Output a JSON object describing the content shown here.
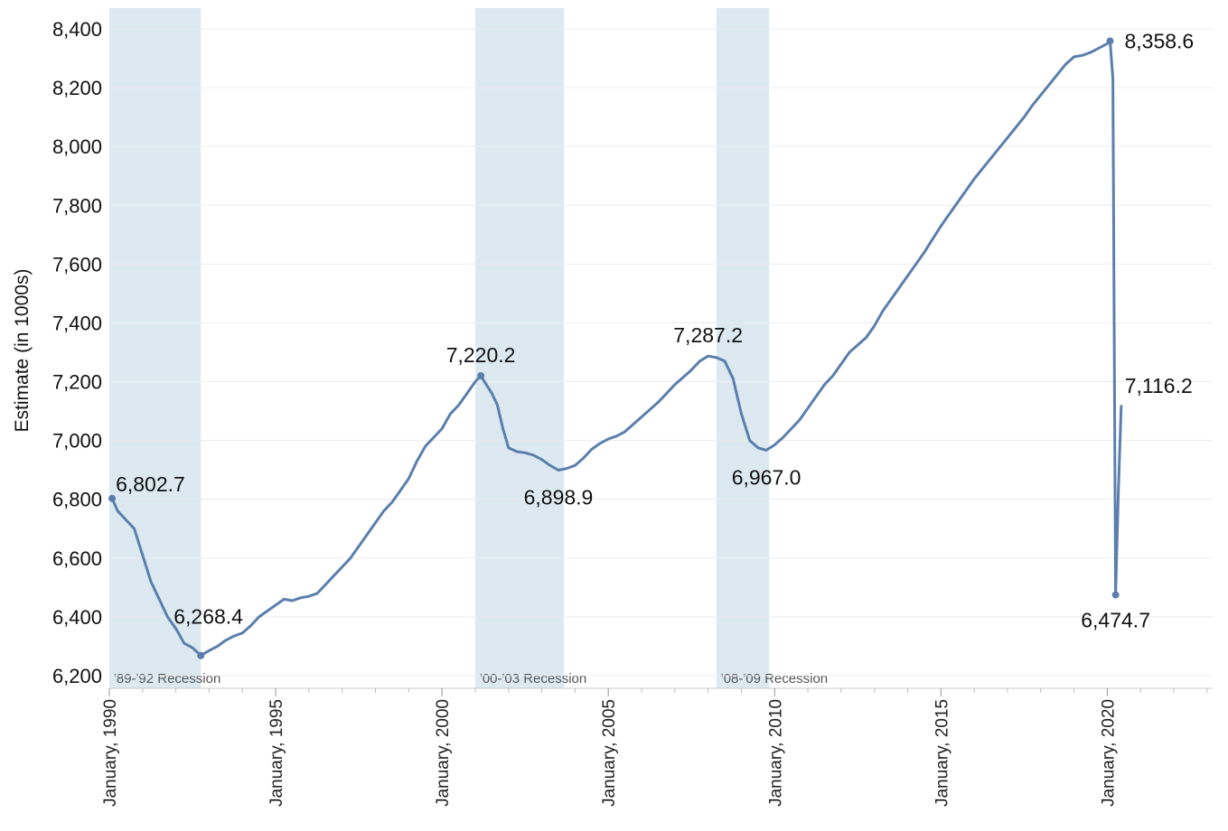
{
  "chart_data": {
    "type": "line",
    "title": "",
    "xlabel": "",
    "ylabel": "Estimate (in 1000s)",
    "ylim": [
      6200,
      8400
    ],
    "xlim": [
      "1990-01",
      "2023-03"
    ],
    "grid": "horizontal",
    "legend": "none",
    "y_ticks": [
      "6,200",
      "6,400",
      "6,600",
      "6,800",
      "7,000",
      "7,200",
      "7,400",
      "7,600",
      "7,800",
      "8,000",
      "8,200",
      "8,400"
    ],
    "y_tick_values": [
      6200,
      6400,
      6600,
      6800,
      7000,
      7200,
      7400,
      7600,
      7800,
      8000,
      8200,
      8400
    ],
    "x_ticks": [
      {
        "date": "1990-01",
        "label": "January, 1990"
      },
      {
        "date": "1995-01",
        "label": "January, 1995"
      },
      {
        "date": "2000-01",
        "label": "January, 2000"
      },
      {
        "date": "2005-01",
        "label": "January, 2005"
      },
      {
        "date": "2010-01",
        "label": "January, 2010"
      },
      {
        "date": "2015-01",
        "label": "January, 2015"
      },
      {
        "date": "2020-01",
        "label": "January, 2020"
      }
    ],
    "recessions": [
      {
        "label": "'89-'92 Recession",
        "start": "1990-01",
        "end": "1992-10"
      },
      {
        "label": "'00-'03 Recession",
        "start": "2001-01",
        "end": "2003-09"
      },
      {
        "label": "'08-'09 Recession",
        "start": "2008-04",
        "end": "2009-11"
      }
    ],
    "series": [
      {
        "color": "#5b7fad",
        "points": [
          [
            "1990-02",
            6802.7
          ],
          [
            "1990-04",
            6760
          ],
          [
            "1990-07",
            6730
          ],
          [
            "1990-10",
            6700
          ],
          [
            "1991-01",
            6610
          ],
          [
            "1991-04",
            6520
          ],
          [
            "1991-07",
            6460
          ],
          [
            "1991-10",
            6400
          ],
          [
            "1992-01",
            6360
          ],
          [
            "1992-04",
            6310
          ],
          [
            "1992-07",
            6295
          ],
          [
            "1992-10",
            6268.4
          ],
          [
            "1993-01",
            6285
          ],
          [
            "1993-04",
            6300
          ],
          [
            "1993-07",
            6320
          ],
          [
            "1993-10",
            6335
          ],
          [
            "1994-01",
            6345
          ],
          [
            "1994-04",
            6370
          ],
          [
            "1994-07",
            6400
          ],
          [
            "1994-10",
            6420
          ],
          [
            "1995-01",
            6440
          ],
          [
            "1995-04",
            6460
          ],
          [
            "1995-07",
            6455
          ],
          [
            "1995-10",
            6465
          ],
          [
            "1996-01",
            6470
          ],
          [
            "1996-04",
            6480
          ],
          [
            "1996-07",
            6510
          ],
          [
            "1996-10",
            6540
          ],
          [
            "1997-01",
            6570
          ],
          [
            "1997-04",
            6600
          ],
          [
            "1997-07",
            6640
          ],
          [
            "1997-10",
            6680
          ],
          [
            "1998-01",
            6720
          ],
          [
            "1998-04",
            6760
          ],
          [
            "1998-07",
            6790
          ],
          [
            "1998-10",
            6830
          ],
          [
            "1999-01",
            6870
          ],
          [
            "1999-04",
            6930
          ],
          [
            "1999-07",
            6980
          ],
          [
            "1999-10",
            7010
          ],
          [
            "2000-01",
            7040
          ],
          [
            "2000-04",
            7090
          ],
          [
            "2000-07",
            7120
          ],
          [
            "2000-10",
            7160
          ],
          [
            "2001-01",
            7200
          ],
          [
            "2001-03",
            7220.2
          ],
          [
            "2001-05",
            7190
          ],
          [
            "2001-07",
            7160
          ],
          [
            "2001-09",
            7120
          ],
          [
            "2001-11",
            7040
          ],
          [
            "2002-01",
            6975
          ],
          [
            "2002-04",
            6962
          ],
          [
            "2002-07",
            6958
          ],
          [
            "2002-10",
            6950
          ],
          [
            "2003-01",
            6935
          ],
          [
            "2003-04",
            6915
          ],
          [
            "2003-07",
            6898.9
          ],
          [
            "2003-10",
            6905
          ],
          [
            "2004-01",
            6915
          ],
          [
            "2004-04",
            6940
          ],
          [
            "2004-07",
            6970
          ],
          [
            "2004-10",
            6990
          ],
          [
            "2005-01",
            7005
          ],
          [
            "2005-04",
            7015
          ],
          [
            "2005-07",
            7030
          ],
          [
            "2005-10",
            7055
          ],
          [
            "2006-01",
            7080
          ],
          [
            "2006-04",
            7105
          ],
          [
            "2006-07",
            7130
          ],
          [
            "2006-10",
            7160
          ],
          [
            "2007-01",
            7190
          ],
          [
            "2007-04",
            7215
          ],
          [
            "2007-07",
            7240
          ],
          [
            "2007-10",
            7270
          ],
          [
            "2008-01",
            7287.2
          ],
          [
            "2008-04",
            7282
          ],
          [
            "2008-07",
            7270
          ],
          [
            "2008-10",
            7210
          ],
          [
            "2009-01",
            7090
          ],
          [
            "2009-04",
            7000
          ],
          [
            "2009-07",
            6975
          ],
          [
            "2009-10",
            6967.0
          ],
          [
            "2010-01",
            6985
          ],
          [
            "2010-04",
            7010
          ],
          [
            "2010-07",
            7040
          ],
          [
            "2010-10",
            7070
          ],
          [
            "2011-01",
            7110
          ],
          [
            "2011-04",
            7150
          ],
          [
            "2011-07",
            7190
          ],
          [
            "2011-10",
            7220
          ],
          [
            "2012-01",
            7260
          ],
          [
            "2012-04",
            7300
          ],
          [
            "2012-07",
            7325
          ],
          [
            "2012-10",
            7350
          ],
          [
            "2013-01",
            7390
          ],
          [
            "2013-04",
            7440
          ],
          [
            "2013-07",
            7480
          ],
          [
            "2013-10",
            7520
          ],
          [
            "2014-01",
            7560
          ],
          [
            "2014-04",
            7600
          ],
          [
            "2014-07",
            7640
          ],
          [
            "2014-10",
            7685
          ],
          [
            "2015-01",
            7730
          ],
          [
            "2015-04",
            7770
          ],
          [
            "2015-07",
            7810
          ],
          [
            "2015-10",
            7850
          ],
          [
            "2016-01",
            7890
          ],
          [
            "2016-04",
            7925
          ],
          [
            "2016-07",
            7960
          ],
          [
            "2016-10",
            7995
          ],
          [
            "2017-01",
            8030
          ],
          [
            "2017-04",
            8065
          ],
          [
            "2017-07",
            8100
          ],
          [
            "2017-10",
            8140
          ],
          [
            "2018-01",
            8175
          ],
          [
            "2018-04",
            8210
          ],
          [
            "2018-07",
            8245
          ],
          [
            "2018-10",
            8280
          ],
          [
            "2019-01",
            8305
          ],
          [
            "2019-04",
            8310
          ],
          [
            "2019-07",
            8320
          ],
          [
            "2019-10",
            8335
          ],
          [
            "2020-01",
            8350
          ],
          [
            "2020-02",
            8358.6
          ],
          [
            "2020-03",
            8230
          ],
          [
            "2020-04",
            6474.7
          ],
          [
            "2020-05",
            6830
          ],
          [
            "2020-06",
            7116.2
          ]
        ]
      }
    ],
    "annotations": [
      {
        "text": "6,802.7",
        "date": "1990-02",
        "value": 6802.7,
        "anchor": "start",
        "dx": 4,
        "dy": -8,
        "marker": true
      },
      {
        "text": "6,268.4",
        "date": "1992-10",
        "value": 6268.4,
        "anchor": "start",
        "dx": -30,
        "dy": -35,
        "marker": true
      },
      {
        "text": "7,220.2",
        "date": "2001-03",
        "value": 7220.2,
        "anchor": "middle",
        "dx": 0,
        "dy": -15,
        "marker": true
      },
      {
        "text": "6,898.9",
        "date": "2003-07",
        "value": 6898.9,
        "anchor": "middle",
        "dx": 0,
        "dy": 38,
        "marker": false
      },
      {
        "text": "7,287.2",
        "date": "2008-01",
        "value": 7287.2,
        "anchor": "middle",
        "dx": 0,
        "dy": -15,
        "marker": false
      },
      {
        "text": "6,967.0",
        "date": "2009-10",
        "value": 6967.0,
        "anchor": "middle",
        "dx": 0,
        "dy": 38,
        "marker": false
      },
      {
        "text": "8,358.6",
        "date": "2020-02",
        "value": 8358.6,
        "anchor": "start",
        "dx": 16,
        "dy": 8,
        "marker": true
      },
      {
        "text": "6,474.7",
        "date": "2020-04",
        "value": 6474.7,
        "anchor": "middle",
        "dx": 0,
        "dy": 36,
        "marker": true
      },
      {
        "text": "7,116.2",
        "date": "2020-06",
        "value": 7116.2,
        "anchor": "start",
        "dx": 4,
        "dy": -15,
        "marker": false
      }
    ]
  }
}
